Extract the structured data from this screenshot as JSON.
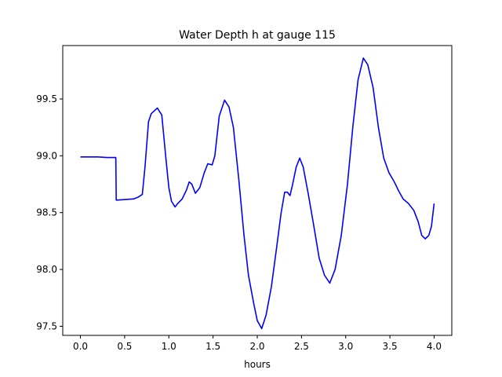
{
  "chart_data": {
    "type": "line",
    "title": "Water Depth h at gauge 115",
    "xlabel": "hours",
    "ylabel": "",
    "xlim": [
      -0.2,
      4.2
    ],
    "ylim": [
      97.42,
      99.97
    ],
    "grid": false,
    "x_ticks": [
      0.0,
      0.5,
      1.0,
      1.5,
      2.0,
      2.5,
      3.0,
      3.5,
      4.0
    ],
    "x_tick_labels": [
      "0.0",
      "0.5",
      "1.0",
      "1.5",
      "2.0",
      "2.5",
      "3.0",
      "3.5",
      "4.0"
    ],
    "y_ticks": [
      97.5,
      98.0,
      98.5,
      99.0,
      99.5
    ],
    "y_tick_labels": [
      "97.5",
      "98.0",
      "98.5",
      "99.0",
      "99.5"
    ],
    "colors": {
      "series": "#0000ff",
      "axes": "#000000",
      "background": "#ffffff"
    },
    "series": [
      {
        "color": "#0000ff",
        "points": [
          [
            0.0,
            98.99
          ],
          [
            0.1,
            98.99
          ],
          [
            0.2,
            98.99
          ],
          [
            0.3,
            98.985
          ],
          [
            0.4,
            98.985
          ],
          [
            0.405,
            98.61
          ],
          [
            0.5,
            98.615
          ],
          [
            0.6,
            98.62
          ],
          [
            0.65,
            98.635
          ],
          [
            0.7,
            98.66
          ],
          [
            0.73,
            98.9
          ],
          [
            0.77,
            99.3
          ],
          [
            0.8,
            99.37
          ],
          [
            0.87,
            99.42
          ],
          [
            0.92,
            99.36
          ],
          [
            0.97,
            98.95
          ],
          [
            1.0,
            98.72
          ],
          [
            1.03,
            98.6
          ],
          [
            1.07,
            98.55
          ],
          [
            1.1,
            98.58
          ],
          [
            1.15,
            98.62
          ],
          [
            1.2,
            98.7
          ],
          [
            1.23,
            98.77
          ],
          [
            1.26,
            98.75
          ],
          [
            1.3,
            98.67
          ],
          [
            1.35,
            98.72
          ],
          [
            1.4,
            98.85
          ],
          [
            1.44,
            98.93
          ],
          [
            1.49,
            98.92
          ],
          [
            1.52,
            99.0
          ],
          [
            1.57,
            99.35
          ],
          [
            1.63,
            99.49
          ],
          [
            1.68,
            99.43
          ],
          [
            1.73,
            99.25
          ],
          [
            1.79,
            98.8
          ],
          [
            1.85,
            98.3
          ],
          [
            1.9,
            97.95
          ],
          [
            1.96,
            97.7
          ],
          [
            2.0,
            97.55
          ],
          [
            2.05,
            97.48
          ],
          [
            2.1,
            97.6
          ],
          [
            2.16,
            97.85
          ],
          [
            2.22,
            98.2
          ],
          [
            2.27,
            98.5
          ],
          [
            2.31,
            98.68
          ],
          [
            2.34,
            98.68
          ],
          [
            2.37,
            98.65
          ],
          [
            2.4,
            98.75
          ],
          [
            2.44,
            98.9
          ],
          [
            2.48,
            98.98
          ],
          [
            2.52,
            98.9
          ],
          [
            2.58,
            98.65
          ],
          [
            2.64,
            98.38
          ],
          [
            2.7,
            98.1
          ],
          [
            2.76,
            97.95
          ],
          [
            2.82,
            97.88
          ],
          [
            2.88,
            98.0
          ],
          [
            2.95,
            98.3
          ],
          [
            3.02,
            98.75
          ],
          [
            3.08,
            99.25
          ],
          [
            3.14,
            99.67
          ],
          [
            3.2,
            99.86
          ],
          [
            3.25,
            99.8
          ],
          [
            3.31,
            99.6
          ],
          [
            3.37,
            99.25
          ],
          [
            3.43,
            98.98
          ],
          [
            3.49,
            98.85
          ],
          [
            3.55,
            98.77
          ],
          [
            3.6,
            98.69
          ],
          [
            3.65,
            98.62
          ],
          [
            3.71,
            98.58
          ],
          [
            3.77,
            98.52
          ],
          [
            3.82,
            98.42
          ],
          [
            3.86,
            98.3
          ],
          [
            3.9,
            98.27
          ],
          [
            3.94,
            98.3
          ],
          [
            3.97,
            98.38
          ],
          [
            4.0,
            98.58
          ]
        ]
      }
    ]
  }
}
